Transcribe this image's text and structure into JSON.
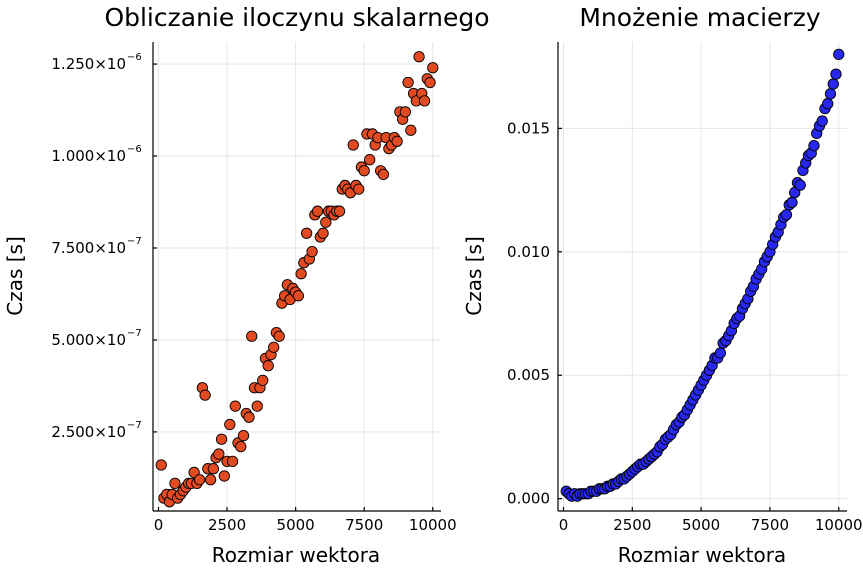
{
  "chart_data": [
    {
      "type": "scatter",
      "title": "Obliczanie iloczynu skalarnego",
      "xlabel": "Rozmiar wektora",
      "ylabel": "Czas [s]",
      "xlim": [
        -200,
        10300
      ],
      "ylim": [
        3.5e-08,
        1.31e-06
      ],
      "xticks": [
        0,
        2500,
        5000,
        7500,
        10000
      ],
      "xtick_labels": [
        "0",
        "2500",
        "5000",
        "7500",
        "10000"
      ],
      "yticks": [
        2.5e-07,
        5e-07,
        7.5e-07,
        1e-06,
        1.25e-06
      ],
      "ytick_labels": [
        {
          "mantissa": "2.500×10",
          "exponent": "−7"
        },
        {
          "mantissa": "5.000×10",
          "exponent": "−7"
        },
        {
          "mantissa": "7.500×10",
          "exponent": "−7"
        },
        {
          "mantissa": "1.000×10",
          "exponent": "−6"
        },
        {
          "mantissa": "1.250×10",
          "exponent": "−6"
        }
      ],
      "grid": true,
      "legend": "none",
      "marker_color": "#e24a22",
      "series": [
        {
          "x": [
            100,
            200,
            300,
            400,
            500,
            600,
            700,
            800,
            900,
            1000,
            1100,
            1200,
            1300,
            1400,
            1500,
            1600,
            1700,
            1800,
            1900,
            2000,
            2100,
            2200,
            2300,
            2400,
            2500,
            2600,
            2700,
            2800,
            2900,
            3000,
            3100,
            3200,
            3300,
            3400,
            3500,
            3600,
            3700,
            3800,
            3900,
            4000,
            4100,
            4200,
            4300,
            4400,
            4500,
            4600,
            4700,
            4800,
            4900,
            5000,
            5100,
            5200,
            5300,
            5400,
            5500,
            5600,
            5700,
            5800,
            5900,
            6000,
            6100,
            6200,
            6300,
            6400,
            6500,
            6600,
            6700,
            6800,
            6900,
            7000,
            7100,
            7200,
            7300,
            7400,
            7500,
            7600,
            7700,
            7800,
            7900,
            8000,
            8100,
            8200,
            8300,
            8400,
            8500,
            8600,
            8700,
            8800,
            8900,
            9000,
            9100,
            9200,
            9300,
            9400,
            9500,
            9600,
            9700,
            9800,
            9900,
            10000
          ],
          "y": [
            1.6e-07,
            7e-08,
            8e-08,
            6e-08,
            8e-08,
            1.1e-07,
            7e-08,
            8e-08,
            9e-08,
            1e-07,
            1.1e-07,
            1.1e-07,
            1.4e-07,
            1.1e-07,
            1.2e-07,
            3.7e-07,
            3.5e-07,
            1.5e-07,
            1.2e-07,
            1.5e-07,
            1.8e-07,
            1.9e-07,
            2.3e-07,
            1.3e-07,
            1.7e-07,
            2.7e-07,
            1.7e-07,
            3.2e-07,
            2.2e-07,
            2.1e-07,
            2.4e-07,
            3e-07,
            2.9e-07,
            5.1e-07,
            3.7e-07,
            3.2e-07,
            3.7e-07,
            3.9e-07,
            4.5e-07,
            4.3e-07,
            4.6e-07,
            4.8e-07,
            5.2e-07,
            5.1e-07,
            6e-07,
            6.2e-07,
            6.5e-07,
            6.1e-07,
            6.4e-07,
            6.3e-07,
            6.2e-07,
            6.8e-07,
            7.1e-07,
            7.9e-07,
            7.2e-07,
            7.4e-07,
            8.4e-07,
            8.5e-07,
            7.8e-07,
            7.9e-07,
            8.2e-07,
            8.5e-07,
            8.5e-07,
            8.4e-07,
            8.5e-07,
            8.5e-07,
            9.1e-07,
            9.2e-07,
            9.1e-07,
            9e-07,
            1.03e-06,
            9.2e-07,
            9.1e-07,
            9.7e-07,
            9.6e-07,
            1.06e-06,
            9.9e-07,
            1.06e-06,
            1.03e-06,
            1.05e-06,
            9.6e-07,
            9.5e-07,
            1.05e-06,
            1.02e-06,
            1.03e-06,
            1.05e-06,
            1.04e-06,
            1.12e-06,
            1.1e-06,
            1.12e-06,
            1.2e-06,
            1.07e-06,
            1.17e-06,
            1.15e-06,
            1.27e-06,
            1.17e-06,
            1.15e-06,
            1.21e-06,
            1.2e-06,
            1.24e-06
          ]
        }
      ]
    },
    {
      "type": "scatter",
      "title": "Mnożenie macierzy",
      "xlabel": "Rozmiar wektora",
      "ylabel": "Czas [s]",
      "xlim": [
        -200,
        10300
      ],
      "ylim": [
        -0.0005,
        0.0185
      ],
      "xticks": [
        0,
        2500,
        5000,
        7500,
        10000
      ],
      "xtick_labels": [
        "0",
        "2500",
        "5000",
        "7500",
        "10000"
      ],
      "yticks": [
        0,
        0.005,
        0.01,
        0.015
      ],
      "ytick_labels": [
        "0.000",
        "0.005",
        "0.010",
        "0.015"
      ],
      "grid": true,
      "legend": "none",
      "marker_color": "#2727f0",
      "series": [
        {
          "x": [
            100,
            200,
            300,
            400,
            500,
            600,
            700,
            800,
            900,
            1000,
            1100,
            1200,
            1300,
            1400,
            1500,
            1600,
            1700,
            1800,
            1900,
            2000,
            2100,
            2200,
            2300,
            2400,
            2500,
            2600,
            2700,
            2800,
            2900,
            3000,
            3100,
            3200,
            3300,
            3400,
            3500,
            3600,
            3700,
            3800,
            3900,
            4000,
            4100,
            4200,
            4300,
            4400,
            4500,
            4600,
            4700,
            4800,
            4900,
            5000,
            5100,
            5200,
            5300,
            5400,
            5500,
            5600,
            5700,
            5800,
            5900,
            6000,
            6100,
            6200,
            6300,
            6400,
            6500,
            6600,
            6700,
            6800,
            6900,
            7000,
            7100,
            7200,
            7300,
            7400,
            7500,
            7600,
            7700,
            7800,
            7900,
            8000,
            8100,
            8200,
            8300,
            8400,
            8500,
            8600,
            8700,
            8800,
            8900,
            9000,
            9100,
            9200,
            9300,
            9400,
            9500,
            9600,
            9700,
            9800,
            9900,
            10000
          ],
          "y": [
            0.0003,
            0.0002,
            0.0001,
            0.0002,
            0.0001,
            0.0002,
            0.0002,
            0.0002,
            0.0002,
            0.0003,
            0.0003,
            0.0003,
            0.0004,
            0.0004,
            0.0004,
            0.0005,
            0.0005,
            0.0006,
            0.0006,
            0.0007,
            0.0008,
            0.0008,
            0.0009,
            0.001,
            0.0011,
            0.0012,
            0.0013,
            0.0014,
            0.0014,
            0.0015,
            0.0016,
            0.0017,
            0.0018,
            0.0019,
            0.0021,
            0.0022,
            0.0024,
            0.0025,
            0.0026,
            0.0028,
            0.003,
            0.0031,
            0.0033,
            0.0034,
            0.0036,
            0.0038,
            0.004,
            0.0042,
            0.0044,
            0.0046,
            0.0048,
            0.005,
            0.0052,
            0.0054,
            0.0057,
            0.0057,
            0.0059,
            0.0063,
            0.0064,
            0.0066,
            0.0068,
            0.0071,
            0.0073,
            0.0074,
            0.0077,
            0.0079,
            0.0081,
            0.0084,
            0.0086,
            0.0089,
            0.0091,
            0.0093,
            0.0096,
            0.0098,
            0.01,
            0.0103,
            0.0106,
            0.0108,
            0.0111,
            0.0114,
            0.0115,
            0.0119,
            0.012,
            0.0124,
            0.0128,
            0.0127,
            0.0133,
            0.0136,
            0.0139,
            0.014,
            0.0143,
            0.0148,
            0.0151,
            0.0153,
            0.0158,
            0.016,
            0.0164,
            0.0168,
            0.0172,
            0.018
          ]
        }
      ]
    }
  ]
}
